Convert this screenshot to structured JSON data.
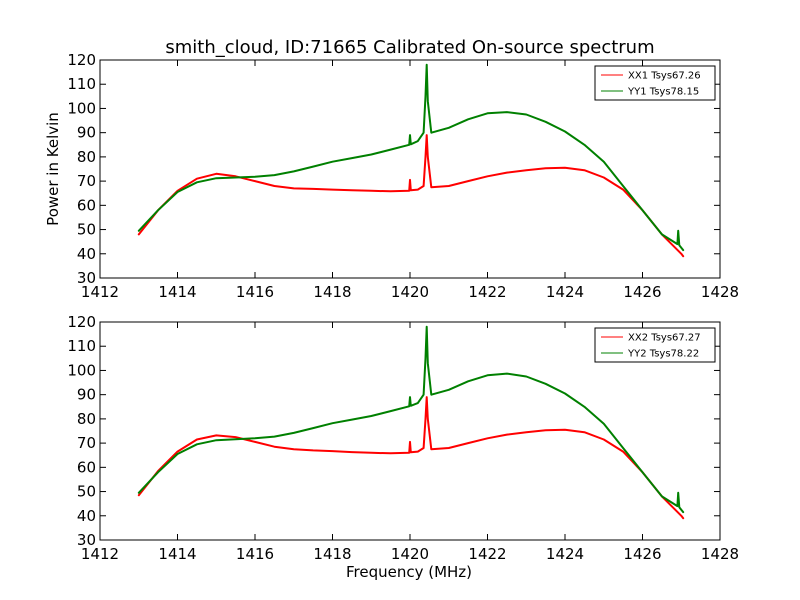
{
  "figure": {
    "title": "smith_cloud, ID:71665 Calibrated On-source spectrum"
  },
  "chart_data": [
    {
      "type": "line",
      "title": "smith_cloud, ID:71665 Calibrated On-source spectrum",
      "xlabel": "",
      "ylabel": "Power in Kelvin",
      "xlim": [
        1412,
        1428
      ],
      "ylim": [
        30,
        120
      ],
      "xticks": [
        "1412",
        "1414",
        "1416",
        "1418",
        "1420",
        "1422",
        "1424",
        "1426",
        "1428"
      ],
      "yticks": [
        "30",
        "40",
        "50",
        "60",
        "70",
        "80",
        "90",
        "100",
        "110",
        "120"
      ],
      "grid": false,
      "legend_position": "top-right",
      "series": [
        {
          "name": "XX1 Tsys67.26",
          "color": "#ff0000",
          "x": [
            1413.0,
            1413.5,
            1414.0,
            1414.5,
            1415.0,
            1415.5,
            1416.0,
            1416.5,
            1417.0,
            1417.5,
            1418.0,
            1418.5,
            1419.0,
            1419.5,
            1419.98,
            1420.0,
            1420.02,
            1420.2,
            1420.35,
            1420.4,
            1420.43,
            1420.46,
            1420.55,
            1421.0,
            1421.5,
            1422.0,
            1422.5,
            1423.0,
            1423.5,
            1424.0,
            1424.5,
            1425.0,
            1425.5,
            1426.0,
            1426.5,
            1427.0,
            1427.05
          ],
          "values": [
            48,
            58,
            66,
            71,
            73,
            72,
            70,
            68,
            67,
            66.8,
            66.5,
            66.2,
            66.0,
            65.8,
            66.0,
            70.5,
            66.2,
            66.5,
            68,
            80,
            89,
            80,
            67.5,
            68,
            70,
            72,
            73.5,
            74.5,
            75.3,
            75.5,
            74.5,
            71.5,
            66.5,
            58,
            48,
            40,
            39
          ]
        },
        {
          "name": "YY1 Tsys78.15",
          "color": "#008000",
          "x": [
            1413.0,
            1413.5,
            1414.0,
            1414.5,
            1415.0,
            1415.5,
            1416.0,
            1416.5,
            1417.0,
            1417.5,
            1418.0,
            1418.5,
            1419.0,
            1419.5,
            1419.98,
            1420.0,
            1420.02,
            1420.2,
            1420.35,
            1420.4,
            1420.43,
            1420.46,
            1420.55,
            1421.0,
            1421.5,
            1422.0,
            1422.5,
            1423.0,
            1423.5,
            1424.0,
            1424.5,
            1425.0,
            1425.5,
            1426.0,
            1426.5,
            1426.9,
            1426.92,
            1426.95,
            1427.05
          ],
          "values": [
            49.5,
            58,
            65.5,
            69.5,
            71.2,
            71.5,
            71.8,
            72.5,
            74,
            76,
            78,
            79.5,
            81,
            83,
            85,
            89,
            85.2,
            86.5,
            90,
            105,
            118,
            103,
            90,
            92,
            95.5,
            98,
            98.5,
            97.5,
            94.5,
            90.5,
            85,
            78,
            68,
            58,
            48,
            44,
            49.5,
            43.5,
            41.5
          ]
        }
      ]
    },
    {
      "type": "line",
      "title": "",
      "xlabel": "Frequency (MHz)",
      "ylabel": "",
      "xlim": [
        1412,
        1428
      ],
      "ylim": [
        30,
        120
      ],
      "xticks": [
        "1412",
        "1414",
        "1416",
        "1418",
        "1420",
        "1422",
        "1424",
        "1426",
        "1428"
      ],
      "yticks": [
        "30",
        "40",
        "50",
        "60",
        "70",
        "80",
        "90",
        "100",
        "110",
        "120"
      ],
      "grid": false,
      "legend_position": "top-right",
      "series": [
        {
          "name": "XX2 Tsys67.27",
          "color": "#ff0000",
          "x": [
            1413.0,
            1413.5,
            1414.0,
            1414.5,
            1415.0,
            1415.5,
            1416.0,
            1416.5,
            1417.0,
            1417.5,
            1418.0,
            1418.5,
            1419.0,
            1419.5,
            1419.98,
            1420.0,
            1420.02,
            1420.2,
            1420.35,
            1420.4,
            1420.43,
            1420.46,
            1420.55,
            1421.0,
            1421.5,
            1422.0,
            1422.5,
            1423.0,
            1423.5,
            1424.0,
            1424.5,
            1425.0,
            1425.5,
            1426.0,
            1426.5,
            1427.0,
            1427.05
          ],
          "values": [
            48.5,
            58.5,
            66.5,
            71.5,
            73.2,
            72.5,
            70.5,
            68.5,
            67.5,
            67.0,
            66.7,
            66.3,
            66.0,
            65.8,
            66.0,
            70.5,
            66.2,
            66.5,
            68,
            80,
            89,
            80,
            67.5,
            68,
            70,
            72,
            73.5,
            74.5,
            75.3,
            75.5,
            74.5,
            71.5,
            66.5,
            58,
            48,
            40,
            39
          ]
        },
        {
          "name": "YY2 Tsys78.22",
          "color": "#008000",
          "x": [
            1413.0,
            1413.5,
            1414.0,
            1414.5,
            1415.0,
            1415.5,
            1416.0,
            1416.5,
            1417.0,
            1417.5,
            1418.0,
            1418.5,
            1419.0,
            1419.5,
            1419.98,
            1420.0,
            1420.02,
            1420.2,
            1420.35,
            1420.4,
            1420.43,
            1420.46,
            1420.55,
            1421.0,
            1421.5,
            1422.0,
            1422.5,
            1423.0,
            1423.5,
            1424.0,
            1424.5,
            1425.0,
            1425.5,
            1426.0,
            1426.5,
            1426.9,
            1426.92,
            1426.95,
            1427.05
          ],
          "values": [
            49.5,
            58,
            65.5,
            69.5,
            71.2,
            71.6,
            72.0,
            72.7,
            74.2,
            76.2,
            78.2,
            79.7,
            81.2,
            83.2,
            85.2,
            89,
            85.4,
            86.5,
            90,
            105,
            118,
            103,
            90,
            92,
            95.5,
            98,
            98.7,
            97.5,
            94.5,
            90.5,
            85,
            78,
            68,
            58,
            48,
            44,
            49.5,
            43.5,
            41.5
          ]
        }
      ]
    }
  ]
}
